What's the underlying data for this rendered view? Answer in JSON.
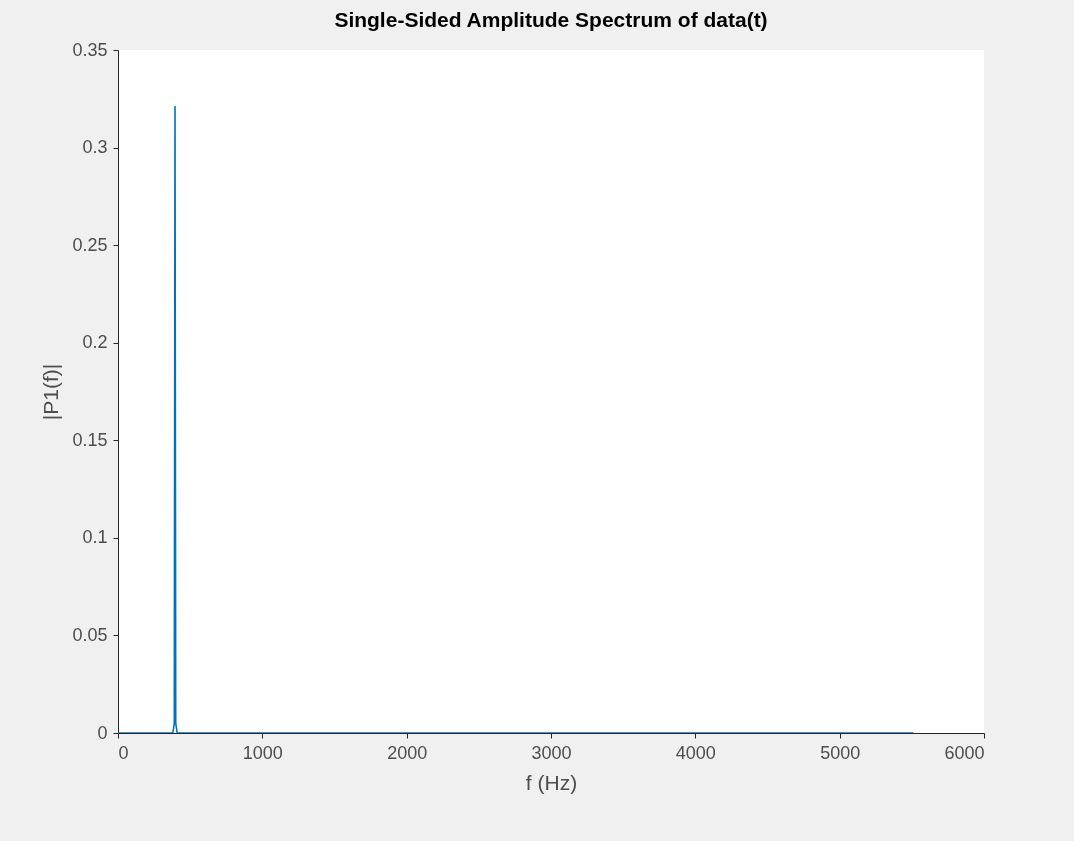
{
  "chart_data": {
    "type": "line",
    "title": "Single-Sided Amplitude Spectrum of data(t)",
    "xlabel": "f (Hz)",
    "ylabel": "|P1(f)|",
    "x": [
      0,
      380,
      390,
      395,
      400,
      410,
      5512
    ],
    "series": [
      {
        "color": "#0072bd",
        "values": [
          0,
          0,
          0.005,
          0.321,
          0.005,
          0,
          0
        ]
      }
    ],
    "xlim": [
      0,
      6000
    ],
    "xticks": [
      0,
      1000,
      2000,
      3000,
      4000,
      5000,
      6000
    ],
    "ylim": [
      0,
      0.35
    ],
    "yticks": [
      0,
      0.05,
      0.1,
      0.15,
      0.2,
      0.25,
      0.3,
      0.35
    ],
    "grid": false,
    "legend": false,
    "marker": "none",
    "line_style": "solid"
  }
}
